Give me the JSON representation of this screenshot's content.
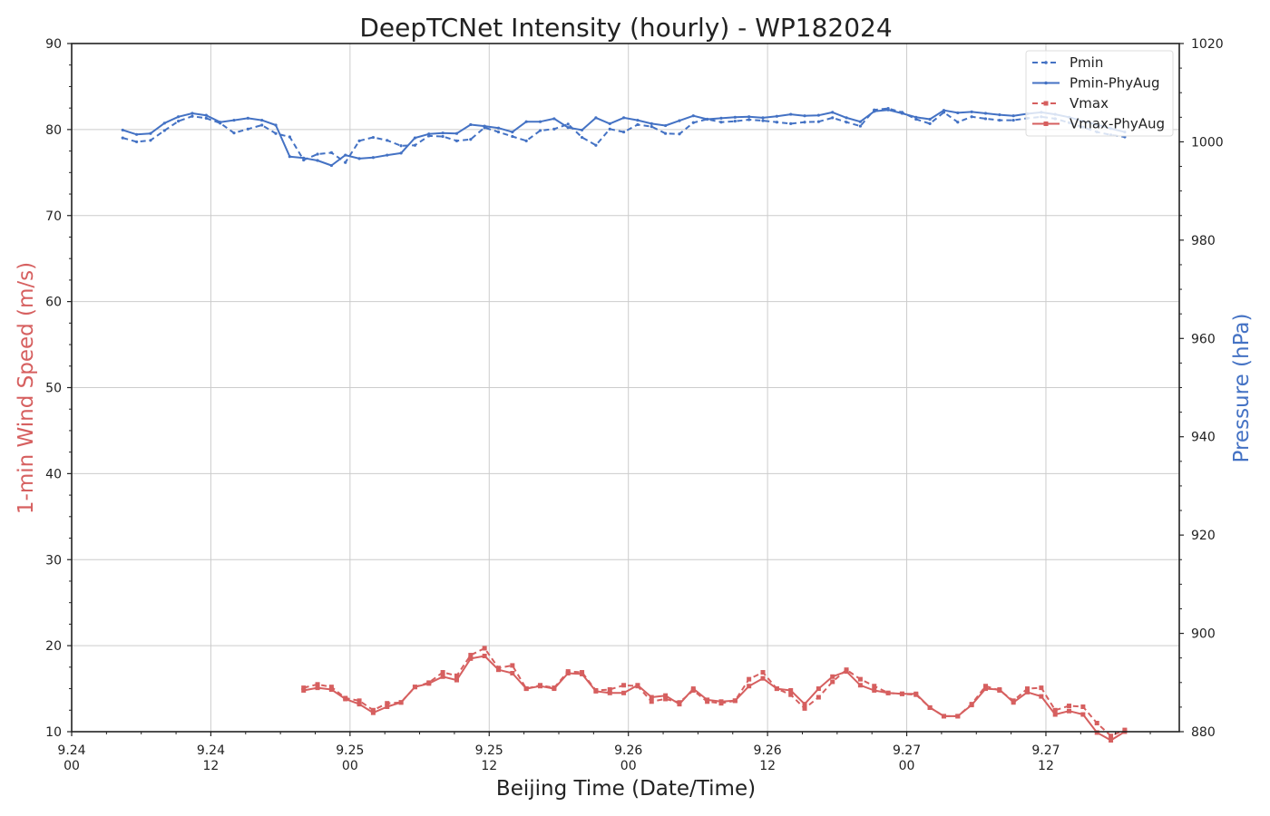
{
  "chart_data": {
    "type": "line",
    "title": "DeepTCNet Intensity (hourly) - WP182024",
    "xlabel": "Beijing Time (Date/Time)",
    "ylabel_left": "1-min Wind Speed (m/s)",
    "ylabel_right": "Pressure (hPa)",
    "xlim_hours": [
      0,
      95.5
    ],
    "ylim_left": [
      10,
      90
    ],
    "ylim_right": [
      880,
      1020
    ],
    "grid": true,
    "legend_position": "top-right",
    "x_ticks": [
      {
        "hour": 0,
        "date": "9.24",
        "time": "00"
      },
      {
        "hour": 12,
        "date": "9.24",
        "time": "12"
      },
      {
        "hour": 24,
        "date": "9.25",
        "time": "00"
      },
      {
        "hour": 36,
        "date": "9.25",
        "time": "12"
      },
      {
        "hour": 48,
        "date": "9.26",
        "time": "00"
      },
      {
        "hour": 60,
        "date": "9.26",
        "time": "12"
      },
      {
        "hour": 72,
        "date": "9.27",
        "time": "00"
      },
      {
        "hour": 84,
        "date": "9.27",
        "time": "12"
      }
    ],
    "y_ticks_left": [
      10,
      20,
      30,
      40,
      50,
      60,
      70,
      80,
      90
    ],
    "y_ticks_right": [
      880,
      900,
      920,
      940,
      960,
      980,
      1000,
      1020
    ],
    "colors": {
      "pressure": "#4472c4",
      "wind": "#d65f5f",
      "left_label": "#d65f5f",
      "right_label": "#4472c4"
    },
    "series": [
      {
        "name": "Pmin",
        "axis": "right",
        "style": "dashed",
        "marker": "dot",
        "color": "#4472c4",
        "x": [
          4.4,
          5.6,
          6.8,
          8,
          9.2,
          10.4,
          11.6,
          12.8,
          14,
          15.2,
          16.4,
          17.6,
          18.8,
          20,
          21.2,
          22.4,
          23.6,
          24.8,
          26,
          27.2,
          28.4,
          29.6,
          30.8,
          32,
          33.2,
          34.4,
          35.6,
          36.8,
          38,
          39.2,
          40.4,
          41.6,
          42.8,
          44,
          45.2,
          46.4,
          47.6,
          48.8,
          50,
          51.2,
          52.4,
          53.6,
          54.8,
          56,
          57.2,
          58.4,
          59.6,
          60.8,
          62,
          63.2,
          64.4,
          65.6,
          66.8,
          68,
          69.2,
          70.4,
          71.6,
          72.8,
          74,
          75.2,
          76.4,
          77.6,
          78.8,
          80,
          81.2,
          82.4,
          83.6,
          84.8,
          86,
          87.2,
          88.4,
          89.6,
          90.8
        ],
        "values": [
          1000.8,
          1000.0,
          1000.3,
          1002.3,
          1004.2,
          1005.2,
          1004.8,
          1003.8,
          1001.8,
          1002.6,
          1003.4,
          1001.7,
          1001.0,
          996.3,
          997.5,
          997.8,
          995.8,
          1000.2,
          1000.9,
          1000.3,
          999.2,
          999.3,
          1001.2,
          1001.1,
          1000.2,
          1000.5,
          1002.9,
          1002.0,
          1001.1,
          1000.2,
          1002.3,
          1002.6,
          1003.6,
          1000.9,
          999.3,
          1002.6,
          1002.0,
          1003.5,
          1003.1,
          1001.7,
          1001.6,
          1003.9,
          1004.6,
          1004.0,
          1004.2,
          1004.5,
          1004.3,
          1004.0,
          1003.7,
          1004.0,
          1004.1,
          1004.9,
          1004.0,
          1003.2,
          1006.5,
          1006.8,
          1006.0,
          1004.6,
          1003.7,
          1006.0,
          1004.0,
          1005.1,
          1004.7,
          1004.4,
          1004.4,
          1004.8,
          1005.1,
          1004.7,
          1003.9,
          1003.0,
          1002.0,
          1001.4,
          1001.0
        ]
      },
      {
        "name": "Pmin-PhyAug",
        "axis": "right",
        "style": "solid",
        "marker": "dot",
        "color": "#4472c4",
        "x": [
          4.4,
          5.6,
          6.8,
          8,
          9.2,
          10.4,
          11.6,
          12.8,
          14,
          15.2,
          16.4,
          17.6,
          18.8,
          20,
          21.2,
          22.4,
          23.6,
          24.8,
          26,
          27.2,
          28.4,
          29.6,
          30.8,
          32,
          33.2,
          34.4,
          35.6,
          36.8,
          38,
          39.2,
          40.4,
          41.6,
          42.8,
          44,
          45.2,
          46.4,
          47.6,
          48.8,
          50,
          51.2,
          52.4,
          53.6,
          54.8,
          56,
          57.2,
          58.4,
          59.6,
          60.8,
          62,
          63.2,
          64.4,
          65.6,
          66.8,
          68,
          69.2,
          70.4,
          71.6,
          72.8,
          74,
          75.2,
          76.4,
          77.6,
          78.8,
          80,
          81.2,
          82.4,
          83.6,
          84.8,
          86,
          87.2,
          88.4,
          89.6,
          90.8
        ],
        "values": [
          1002.4,
          1001.5,
          1001.7,
          1003.8,
          1005.1,
          1005.8,
          1005.4,
          1004.0,
          1004.4,
          1004.8,
          1004.4,
          1003.4,
          997.0,
          996.7,
          996.2,
          995.2,
          997.3,
          996.6,
          996.8,
          997.3,
          997.7,
          1000.8,
          1001.6,
          1001.8,
          1001.7,
          1003.5,
          1003.2,
          1002.8,
          1002.0,
          1004.1,
          1004.1,
          1004.7,
          1002.9,
          1002.4,
          1004.9,
          1003.7,
          1004.9,
          1004.4,
          1003.7,
          1003.3,
          1004.3,
          1005.3,
          1004.6,
          1004.8,
          1005.0,
          1005.1,
          1004.9,
          1005.2,
          1005.6,
          1005.3,
          1005.4,
          1006.0,
          1004.9,
          1004.1,
          1006.2,
          1006.5,
          1005.8,
          1005.0,
          1004.6,
          1006.4,
          1005.9,
          1006.1,
          1005.8,
          1005.5,
          1005.3,
          1005.7,
          1006.0,
          1005.6,
          1005.0,
          1004.2,
          1003.5,
          1002.7,
          1002.0
        ]
      },
      {
        "name": "Vmax",
        "axis": "left",
        "style": "dashed",
        "marker": "square",
        "color": "#d65f5f",
        "x": [
          20,
          21.2,
          22.4,
          23.6,
          24.8,
          26,
          27.2,
          28.4,
          29.6,
          30.8,
          32,
          33.2,
          34.4,
          35.6,
          36.8,
          38,
          39.2,
          40.4,
          41.6,
          42.8,
          44,
          45.2,
          46.4,
          47.6,
          48.8,
          50,
          51.2,
          52.4,
          53.6,
          54.8,
          56,
          57.2,
          58.4,
          59.6,
          60.8,
          62,
          63.2,
          64.4,
          65.6,
          66.8,
          68,
          69.2,
          70.4,
          71.6,
          72.8,
          74,
          75.2,
          76.4,
          77.6,
          78.8,
          80,
          81.2,
          82.4,
          83.6,
          84.8,
          86,
          87.2,
          88.4,
          89.6,
          90.8
        ],
        "values": [
          15.1,
          15.5,
          15.2,
          13.9,
          13.6,
          12.5,
          13.3,
          13.4,
          15.2,
          15.7,
          16.9,
          16.5,
          18.9,
          19.7,
          17.4,
          17.7,
          15.0,
          15.4,
          15.1,
          17.0,
          16.9,
          14.8,
          14.9,
          15.4,
          15.3,
          13.5,
          13.8,
          13.4,
          14.8,
          13.5,
          13.3,
          13.6,
          16.1,
          16.9,
          15.0,
          14.3,
          12.7,
          14.0,
          15.8,
          17.2,
          16.1,
          15.3,
          14.5,
          14.4,
          14.3,
          12.8,
          11.8,
          11.8,
          13.2,
          15.3,
          14.8,
          13.6,
          15.0,
          15.1,
          12.5,
          13.0,
          12.9,
          11.0,
          9.5,
          10.2
        ]
      },
      {
        "name": "Vmax-PhyAug",
        "axis": "left",
        "style": "solid",
        "marker": "square",
        "color": "#d65f5f",
        "x": [
          20,
          21.2,
          22.4,
          23.6,
          24.8,
          26,
          27.2,
          28.4,
          29.6,
          30.8,
          32,
          33.2,
          34.4,
          35.6,
          36.8,
          38,
          39.2,
          40.4,
          41.6,
          42.8,
          44,
          45.2,
          46.4,
          47.6,
          48.8,
          50,
          51.2,
          52.4,
          53.6,
          54.8,
          56,
          57.2,
          58.4,
          59.6,
          60.8,
          62,
          63.2,
          64.4,
          65.6,
          66.8,
          68,
          69.2,
          70.4,
          71.6,
          72.8,
          74,
          75.2,
          76.4,
          77.6,
          78.8,
          80,
          81.2,
          82.4,
          83.6,
          84.8,
          86,
          87.2,
          88.4,
          89.6,
          90.8
        ],
        "values": [
          14.8,
          15.1,
          14.9,
          13.8,
          13.2,
          12.2,
          12.9,
          13.4,
          15.2,
          15.6,
          16.4,
          16.0,
          18.5,
          18.8,
          17.2,
          16.8,
          15.0,
          15.3,
          15.0,
          16.8,
          16.7,
          14.7,
          14.5,
          14.5,
          15.4,
          14.0,
          14.2,
          13.2,
          15.0,
          13.7,
          13.5,
          13.6,
          15.3,
          16.2,
          15.0,
          14.8,
          13.2,
          15.0,
          16.4,
          17.0,
          15.4,
          14.8,
          14.5,
          14.4,
          14.4,
          12.8,
          11.8,
          11.8,
          13.1,
          15.0,
          14.9,
          13.4,
          14.6,
          14.1,
          12.0,
          12.4,
          12.0,
          9.9,
          9.0,
          10.0
        ]
      }
    ]
  }
}
